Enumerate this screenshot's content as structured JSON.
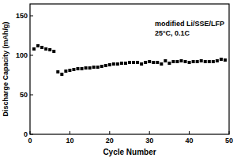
{
  "chart_data": {
    "type": "scatter",
    "x_label": "Cycle Number",
    "y_label": "Discharge Capacity (mAh/g)",
    "annotations": [
      "modified Li/SSE/LFP",
      "25°C, 0.1C"
    ],
    "series": [
      {
        "name": "modified Li/SSE/LFP",
        "color": "#000000",
        "marker": "square",
        "x": [
          1,
          2,
          3,
          4,
          5,
          6,
          7,
          8,
          9,
          10,
          11,
          12,
          13,
          14,
          15,
          16,
          17,
          18,
          19,
          20,
          21,
          22,
          23,
          24,
          25,
          26,
          27,
          28,
          29,
          30,
          31,
          32,
          33,
          34,
          35,
          36,
          37,
          38,
          39,
          40,
          41,
          42,
          43,
          44,
          45,
          46,
          47,
          48,
          49
        ],
        "values": [
          108,
          112,
          110,
          108,
          107,
          105,
          79,
          76,
          80,
          81,
          82,
          83,
          83,
          84,
          84,
          85,
          85,
          86,
          87,
          88,
          89,
          89,
          90,
          90,
          91,
          91,
          91,
          89,
          91,
          92,
          91,
          91,
          89,
          93,
          90,
          92,
          92,
          93,
          92,
          91,
          92,
          92,
          93,
          92,
          92,
          92,
          93,
          95,
          94
        ]
      }
    ],
    "xlim": [
      0,
      50
    ],
    "xticks": [
      0,
      10,
      20,
      30,
      40,
      50
    ],
    "ylim": [
      0,
      165
    ],
    "yticks": [
      0,
      50,
      100,
      150
    ],
    "grid": false
  }
}
